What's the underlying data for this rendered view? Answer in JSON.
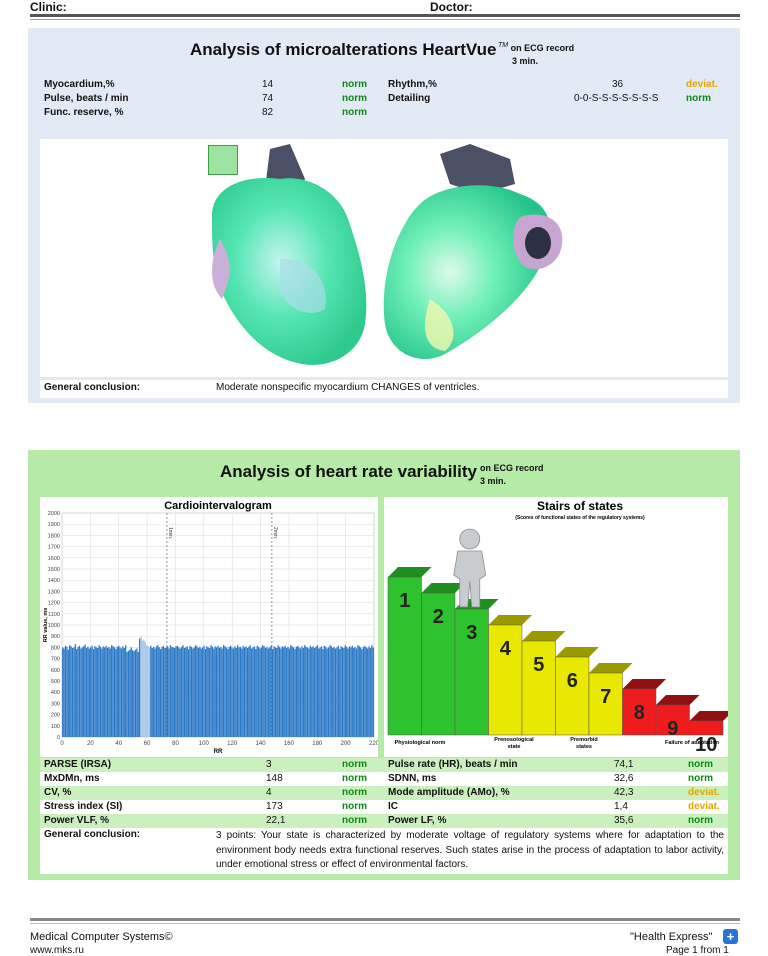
{
  "header": {
    "clinic_label": "Clinic:",
    "doctor_label": "Doctor:"
  },
  "section1": {
    "title": "Analysis of microalterations HeartVue",
    "tm": "TM",
    "subtitle1": "on ECG record",
    "subtitle2": "3 min.",
    "left_rows": [
      {
        "label": "Myocardium,%",
        "value": "14",
        "status": "norm"
      },
      {
        "label": "Pulse, beats / min",
        "value": "74",
        "status": "norm"
      },
      {
        "label": "Func. reserve, %",
        "value": "82",
        "status": "norm"
      }
    ],
    "right_rows": [
      {
        "label": "Rhythm,%",
        "value": "36",
        "status": "deviat."
      },
      {
        "label": "Detailing",
        "value": "0-0-S-S-S-S-S-S-S",
        "status": "norm"
      }
    ],
    "heart_icon": "heart-3d-model",
    "conclusion_label": "General conclusion:",
    "conclusion_text": "Moderate nonspecific myocardium CHANGES of ventricles."
  },
  "section2": {
    "title": "Analysis of heart rate variability",
    "subtitle1": "on ECG record",
    "subtitle2": "3 min."
  },
  "chart_data": {
    "type": "bar",
    "title": "Cardiointervalogram",
    "xlabel": "RR",
    "ylabel": "RR value, ms",
    "xlim": [
      0,
      220
    ],
    "ylim": [
      0,
      2000
    ],
    "xticks": [
      "0",
      "20",
      "40",
      "60",
      "80",
      "100",
      "120",
      "140",
      "160",
      "180",
      "200",
      "220"
    ],
    "yticks": [
      "0",
      "100",
      "200",
      "300",
      "400",
      "500",
      "600",
      "700",
      "800",
      "900",
      "1000",
      "1100",
      "1200",
      "1300",
      "1400",
      "1500",
      "1600",
      "1700",
      "1800",
      "1900",
      "2000"
    ],
    "markers": [
      {
        "x": 74,
        "label": "1min."
      },
      {
        "x": 148,
        "label": "2min."
      }
    ],
    "mean_value": 810,
    "highlight_range": [
      55,
      62
    ],
    "highlight_color": "#a7c4e4",
    "bar_color": "#2a78c6",
    "values": [
      800,
      790,
      815,
      805,
      780,
      820,
      810,
      795,
      800,
      830,
      785,
      805,
      815,
      790,
      800,
      810,
      825,
      795,
      805,
      790,
      800,
      815,
      785,
      810,
      800,
      795,
      820,
      805,
      790,
      810,
      800,
      815,
      795,
      805,
      790,
      820,
      810,
      800,
      785,
      805,
      815,
      800,
      790,
      810,
      795,
      820,
      760,
      770,
      780,
      800,
      775,
      765,
      780,
      790,
      760,
      880,
      900,
      860,
      870,
      850,
      820,
      810,
      800,
      815,
      795,
      805,
      790,
      810,
      820,
      800,
      785,
      805,
      815,
      795,
      800,
      810,
      790,
      820,
      805,
      800,
      795,
      810,
      815,
      800,
      790,
      805,
      820,
      795,
      800,
      810,
      785,
      815,
      805,
      790,
      800,
      820,
      810,
      795,
      805,
      790,
      800,
      815,
      785,
      810,
      800,
      795,
      820,
      805,
      790,
      810,
      800,
      815,
      795,
      805,
      790,
      820,
      810,
      800,
      785,
      805,
      815,
      800,
      790,
      810,
      795,
      820,
      800,
      805,
      790,
      815,
      800,
      810,
      795,
      805,
      820,
      790,
      800,
      810,
      785,
      815,
      805,
      790,
      800,
      820,
      810,
      795,
      805,
      790,
      800,
      815,
      785,
      810,
      800,
      795,
      820,
      805,
      790,
      810,
      800,
      815,
      795,
      805,
      790,
      820,
      810,
      800,
      785,
      805,
      815,
      800,
      790,
      810,
      795,
      820,
      805,
      800,
      790,
      815,
      800,
      810,
      795,
      805,
      820,
      790,
      800,
      810,
      785,
      815,
      805,
      790,
      800,
      820,
      810,
      795,
      805,
      790,
      800,
      815,
      785,
      810,
      800,
      795,
      820,
      805,
      790,
      810,
      800,
      815,
      795,
      805,
      790,
      820,
      810,
      800,
      785,
      805,
      815,
      800,
      790,
      810,
      795,
      820,
      800
    ]
  },
  "stairs": {
    "title": "Stairs of states",
    "subtitle": "(Scores of functional states of the regulatory systems)",
    "current_step": 3,
    "steps": [
      "1",
      "2",
      "3",
      "4",
      "5",
      "6",
      "7",
      "8",
      "9",
      "10"
    ],
    "step_colors": [
      "#2ec22e",
      "#2ec22e",
      "#2ec22e",
      "#e8e800",
      "#e8e800",
      "#e8e800",
      "#e8e800",
      "#ee1c1c",
      "#ee1c1c",
      "#ee1c1c"
    ],
    "categories": [
      {
        "label": "Physiological norm"
      },
      {
        "label": "Prenosological state"
      },
      {
        "label": "Premorbid states"
      },
      {
        "label": "Failure of adaptation"
      }
    ],
    "figure_icon": "person-figure-icon"
  },
  "hrv_table": [
    {
      "l_label": "PARSE (IRSA)",
      "l_value": "3",
      "l_status": "norm",
      "r_label": "Pulse rate (HR), beats / min",
      "r_value": "74,1",
      "r_status": "norm"
    },
    {
      "l_label": "MxDMn, ms",
      "l_value": "148",
      "l_status": "norm",
      "r_label": "SDNN, ms",
      "r_value": "32,6",
      "r_status": "norm"
    },
    {
      "l_label": "CV, %",
      "l_value": "4",
      "l_status": "norm",
      "r_label": "Mode amplitude (AMo), %",
      "r_value": "42,3",
      "r_status": "deviat."
    },
    {
      "l_label": "Stress index (SI)",
      "l_value": "173",
      "l_status": "norm",
      "r_label": "IC",
      "r_value": "1,4",
      "r_status": "deviat."
    },
    {
      "l_label": "Power VLF, %",
      "l_value": "22,1",
      "l_status": "norm",
      "r_label": "Power LF, %",
      "r_value": "35,6",
      "r_status": "norm"
    }
  ],
  "conclusion2": {
    "label": "General conclusion:",
    "text": "3 points: Your state is characterized by moderate voltage of regulatory systems where for adaptation to the environment body needs extra functional reserves. Such states arise in the process of adaptation to labor activity, under emotional stress or effect of environmental factors."
  },
  "footer": {
    "company": "Medical Computer Systems©",
    "url": "www.mks.ru",
    "product": "\"Health Express\"",
    "page": "Page 1 from 1",
    "icon": "plus-logo-icon"
  }
}
